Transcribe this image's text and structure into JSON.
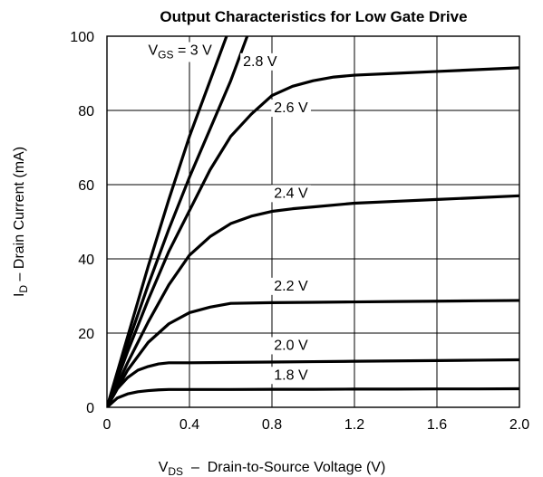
{
  "chart_data": {
    "type": "line",
    "title": "Output Characteristics for Low Gate Drive",
    "xlabel": {
      "main": "V",
      "sub": "DS",
      "rest": "  –  Drain-to-Source Voltage (V)"
    },
    "ylabel": {
      "main": "I",
      "sub": "D",
      "rest": " – Drain Current (mA)"
    },
    "xlim": [
      0,
      2.0
    ],
    "ylim": [
      0,
      100
    ],
    "x_ticks": [
      "0",
      "0.4",
      "0.8",
      "1.2",
      "1.6",
      "2.0"
    ],
    "y_ticks": [
      "0",
      "20",
      "40",
      "60",
      "80",
      "100"
    ],
    "grid": true,
    "series_label_prefix": {
      "main": "V",
      "sub": "GS",
      "rest": " = "
    },
    "series": [
      {
        "name": "3 V",
        "x": [
          0,
          0.1,
          0.2,
          0.3,
          0.4,
          0.5,
          0.58
        ],
        "y": [
          0,
          19,
          38,
          56,
          73,
          88,
          100
        ]
      },
      {
        "name": "2.8 V",
        "x": [
          0,
          0.1,
          0.2,
          0.3,
          0.4,
          0.5,
          0.6,
          0.68
        ],
        "y": [
          0,
          17,
          33,
          48,
          62,
          75,
          88,
          100
        ]
      },
      {
        "name": "2.6 V",
        "x": [
          0,
          0.1,
          0.2,
          0.3,
          0.4,
          0.5,
          0.6,
          0.7,
          0.8,
          0.9,
          1.0,
          1.1,
          1.2,
          1.4,
          1.6,
          1.8,
          2.0
        ],
        "y": [
          0,
          15,
          29,
          42,
          53,
          64,
          73,
          79,
          84,
          86.5,
          88,
          89,
          89.5,
          90,
          90.5,
          91,
          91.5
        ]
      },
      {
        "name": "2.4 V",
        "x": [
          0,
          0.1,
          0.2,
          0.3,
          0.4,
          0.5,
          0.6,
          0.7,
          0.8,
          0.9,
          1.0,
          1.2,
          1.4,
          1.6,
          1.8,
          2.0
        ],
        "y": [
          0,
          12,
          23,
          33,
          41,
          46,
          49.5,
          51.5,
          52.8,
          53.5,
          54,
          55,
          55.5,
          56,
          56.5,
          57
        ]
      },
      {
        "name": "2.2 V",
        "x": [
          0,
          0.1,
          0.2,
          0.3,
          0.4,
          0.5,
          0.6,
          0.8,
          1.0,
          1.2,
          1.4,
          1.6,
          1.8,
          2.0
        ],
        "y": [
          0,
          10,
          17.5,
          22.5,
          25.5,
          27,
          28,
          28.2,
          28.3,
          28.4,
          28.5,
          28.6,
          28.7,
          28.8
        ]
      },
      {
        "name": "2.0 V",
        "x": [
          0,
          0.05,
          0.1,
          0.15,
          0.2,
          0.25,
          0.3,
          0.4,
          0.6,
          0.8,
          1.0,
          1.2,
          1.4,
          1.6,
          1.8,
          2.0
        ],
        "y": [
          0,
          5,
          8,
          10,
          11,
          11.7,
          12,
          12,
          12.1,
          12.2,
          12.3,
          12.4,
          12.5,
          12.6,
          12.7,
          12.8
        ]
      },
      {
        "name": "1.8 V",
        "x": [
          0,
          0.05,
          0.1,
          0.15,
          0.2,
          0.25,
          0.3,
          0.4,
          0.6,
          0.8,
          1.0,
          1.2,
          1.4,
          1.6,
          1.8,
          2.0
        ],
        "y": [
          0,
          2.5,
          3.6,
          4.2,
          4.5,
          4.7,
          4.8,
          4.8,
          4.8,
          4.85,
          4.85,
          4.9,
          4.9,
          4.95,
          4.95,
          5
        ]
      }
    ],
    "labels": [
      {
        "series": "3 V",
        "text": "3 V",
        "x": 0.2,
        "y": 95,
        "prefixed": true
      },
      {
        "series": "2.8 V",
        "text": "2.8 V",
        "x": 0.66,
        "y": 92
      },
      {
        "series": "2.6 V",
        "text": "2.6 V",
        "x": 0.81,
        "y": 79.5
      },
      {
        "series": "2.4 V",
        "text": "2.4 V",
        "x": 0.81,
        "y": 56.5
      },
      {
        "series": "2.2 V",
        "text": "2.2 V",
        "x": 0.81,
        "y": 31.5
      },
      {
        "series": "2.0 V",
        "text": "2.0 V",
        "x": 0.81,
        "y": 15.5
      },
      {
        "series": "1.8 V",
        "text": "1.8 V",
        "x": 0.81,
        "y": 7.5
      }
    ]
  }
}
